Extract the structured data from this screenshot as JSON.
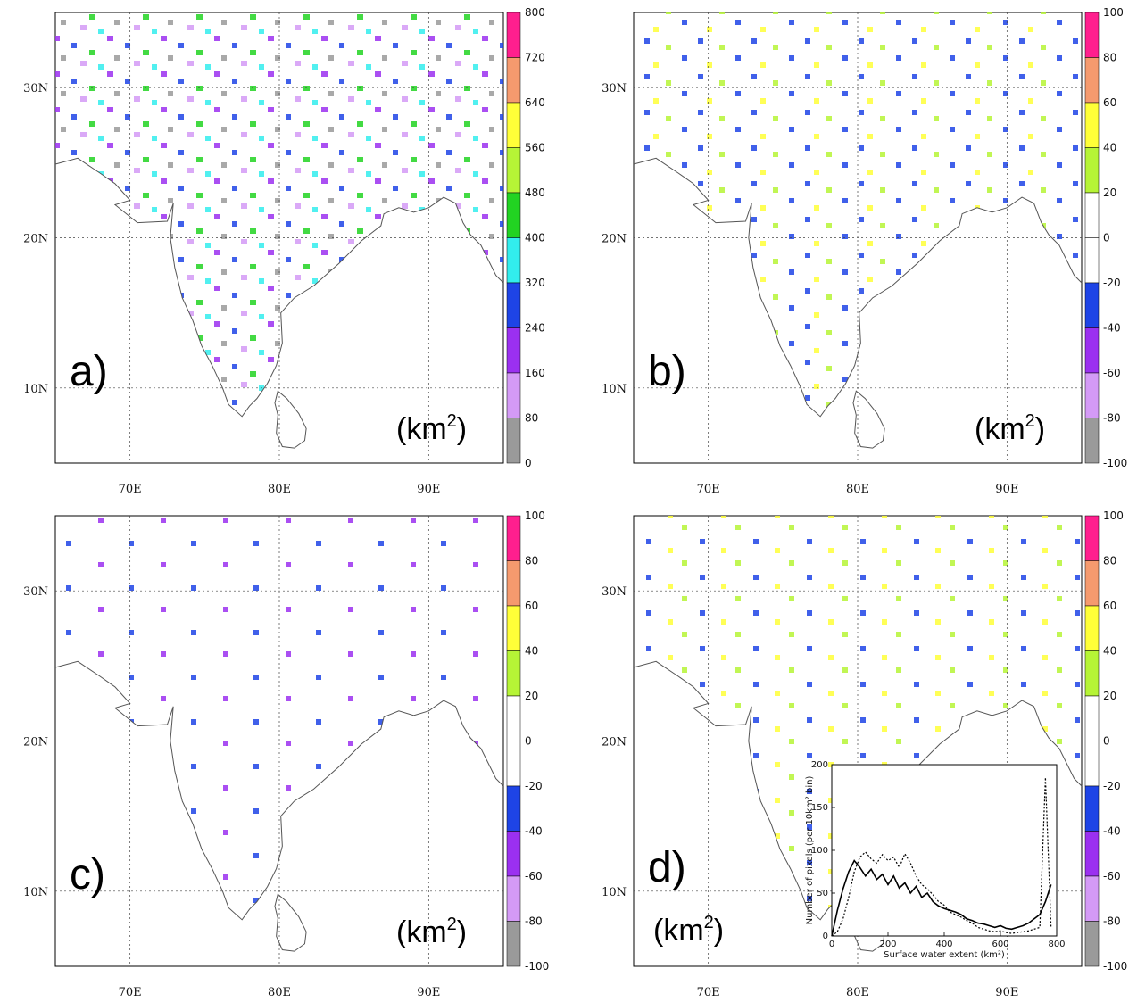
{
  "figure": {
    "lon_ticks": [
      "70E",
      "80E",
      "90E"
    ],
    "lat_ticks": [
      "30N",
      "20N",
      "10N"
    ],
    "panels": [
      {
        "letter": "a)",
        "unit_base": "(km",
        "unit_sup": "2",
        "unit_close": ")",
        "colorbar_labels": [
          "800",
          "720",
          "640",
          "560",
          "480",
          "400",
          "320",
          "240",
          "160",
          "80",
          "0"
        ],
        "colorbar_colors": [
          "#ff1f8e",
          "#f59a6e",
          "#ffff38",
          "#b6f436",
          "#22d322",
          "#32eded",
          "#1e44e6",
          "#9b30f0",
          "#d49af6",
          "#9a9a9a"
        ]
      },
      {
        "letter": "b)",
        "unit_base": "(km",
        "unit_sup": "2",
        "unit_close": ")",
        "colorbar_labels": [
          "100",
          "80",
          "60",
          "40",
          "20",
          "0",
          "-20",
          "-40",
          "-60",
          "-80",
          "-100"
        ],
        "colorbar_colors": [
          "#ff1f8e",
          "#f59a6e",
          "#ffff38",
          "#b6f436",
          "#ffffff",
          "#ffffff",
          "#1e44e6",
          "#9b30f0",
          "#d49af6",
          "#9a9a9a"
        ]
      },
      {
        "letter": "c)",
        "unit_base": "(km",
        "unit_sup": "2",
        "unit_close": ")",
        "colorbar_labels": [
          "100",
          "80",
          "60",
          "40",
          "20",
          "0",
          "-20",
          "-40",
          "-60",
          "-80",
          "-100"
        ],
        "colorbar_colors": [
          "#ff1f8e",
          "#f59a6e",
          "#ffff38",
          "#b6f436",
          "#ffffff",
          "#ffffff",
          "#1e44e6",
          "#9b30f0",
          "#d49af6",
          "#9a9a9a"
        ]
      },
      {
        "letter": "d)",
        "unit_base": "(km",
        "unit_sup": "2",
        "unit_close": ")",
        "colorbar_labels": [
          "100",
          "80",
          "60",
          "40",
          "20",
          "0",
          "-20",
          "-40",
          "-60",
          "-80",
          "-100"
        ],
        "colorbar_colors": [
          "#ff1f8e",
          "#f59a6e",
          "#ffff38",
          "#b6f436",
          "#ffffff",
          "#ffffff",
          "#1e44e6",
          "#9b30f0",
          "#d49af6",
          "#9a9a9a"
        ]
      }
    ]
  },
  "chart_data": {
    "type": "line",
    "xlabel": "Surface water extent (km²)",
    "ylabel": "Number of pixels (per 10km² bin)",
    "xlim": [
      0,
      800
    ],
    "ylim": [
      0,
      200
    ],
    "xticks": [
      "0",
      "200",
      "400",
      "600",
      "800"
    ],
    "yticks": [
      "0",
      "50",
      "100",
      "150",
      "200"
    ],
    "x": [
      0,
      20,
      40,
      60,
      80,
      100,
      120,
      140,
      160,
      180,
      200,
      220,
      240,
      260,
      280,
      300,
      320,
      340,
      360,
      380,
      400,
      420,
      440,
      460,
      480,
      500,
      520,
      540,
      560,
      580,
      600,
      620,
      640,
      660,
      680,
      700,
      720,
      740,
      760,
      780
    ],
    "series": [
      {
        "style": "solid",
        "values": [
          0,
          30,
          55,
          75,
          88,
          80,
          70,
          78,
          66,
          72,
          60,
          70,
          56,
          62,
          50,
          58,
          45,
          50,
          40,
          35,
          32,
          30,
          28,
          25,
          20,
          18,
          15,
          14,
          12,
          10,
          12,
          9,
          8,
          10,
          12,
          15,
          20,
          25,
          40,
          60
        ]
      },
      {
        "style": "dotted",
        "values": [
          0,
          5,
          20,
          45,
          75,
          92,
          98,
          90,
          85,
          95,
          88,
          92,
          80,
          96,
          85,
          70,
          60,
          55,
          48,
          40,
          36,
          28,
          25,
          22,
          18,
          15,
          10,
          8,
          6,
          5,
          6,
          4,
          3,
          4,
          5,
          6,
          8,
          10,
          185,
          10
        ]
      }
    ]
  }
}
